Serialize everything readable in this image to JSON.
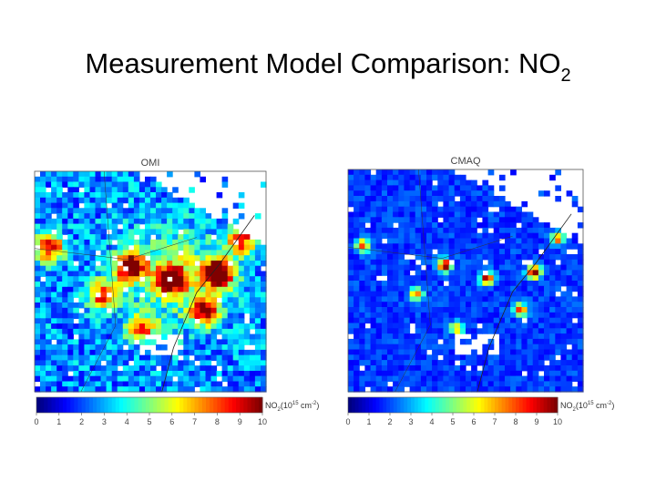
{
  "title": {
    "text": "Measurement Model Comparison: NO",
    "subscript": "2"
  },
  "panels": [
    {
      "label": "OMI",
      "colorbar": {
        "ticks": [
          0,
          1,
          2,
          3,
          4,
          5,
          6,
          7,
          8,
          9,
          10
        ],
        "label": {
          "base": "NO",
          "sub": "2",
          "open": "(10",
          "exp": "15",
          "unit": " cm",
          "exp2": "-2",
          "close": ")"
        }
      }
    },
    {
      "label": "CMAQ",
      "colorbar": {
        "ticks": [
          0,
          1,
          2,
          3,
          4,
          5,
          6,
          7,
          8,
          9,
          10
        ],
        "label": {
          "base": "NO",
          "sub": "2",
          "open": "(10",
          "exp": "15",
          "unit": " cm",
          "exp2": "-2",
          "close": ")"
        }
      }
    }
  ]
}
